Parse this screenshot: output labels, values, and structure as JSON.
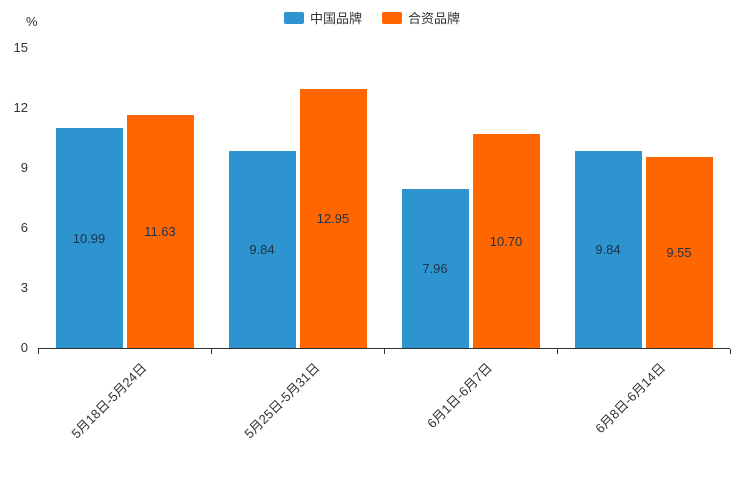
{
  "chart_data": {
    "type": "bar",
    "title": "",
    "ylabel": "%",
    "xlabel": "",
    "categories": [
      "5月18日-5月24日",
      "5月25日-5月31日",
      "6月1日-6月7日",
      "6月8日-6月14日"
    ],
    "series": [
      {
        "name": "中国品牌",
        "color": "#2E94D0",
        "values": [
          10.99,
          9.84,
          7.96,
          9.84
        ],
        "labels": [
          "10.99",
          "9.84",
          "7.96",
          "9.84"
        ]
      },
      {
        "name": "合资品牌",
        "color": "#FF6600",
        "values": [
          11.63,
          12.95,
          10.7,
          9.55
        ],
        "labels": [
          "11.63",
          "12.95",
          "10.70",
          "9.55"
        ]
      }
    ],
    "ylim": [
      0,
      15
    ],
    "yticks": [
      0,
      3,
      6,
      9,
      12,
      15
    ],
    "grid": false,
    "legend_position": "top",
    "value_label_position": "inside-center",
    "value_label_color": "#1c3349",
    "axis_color": "#333333"
  }
}
